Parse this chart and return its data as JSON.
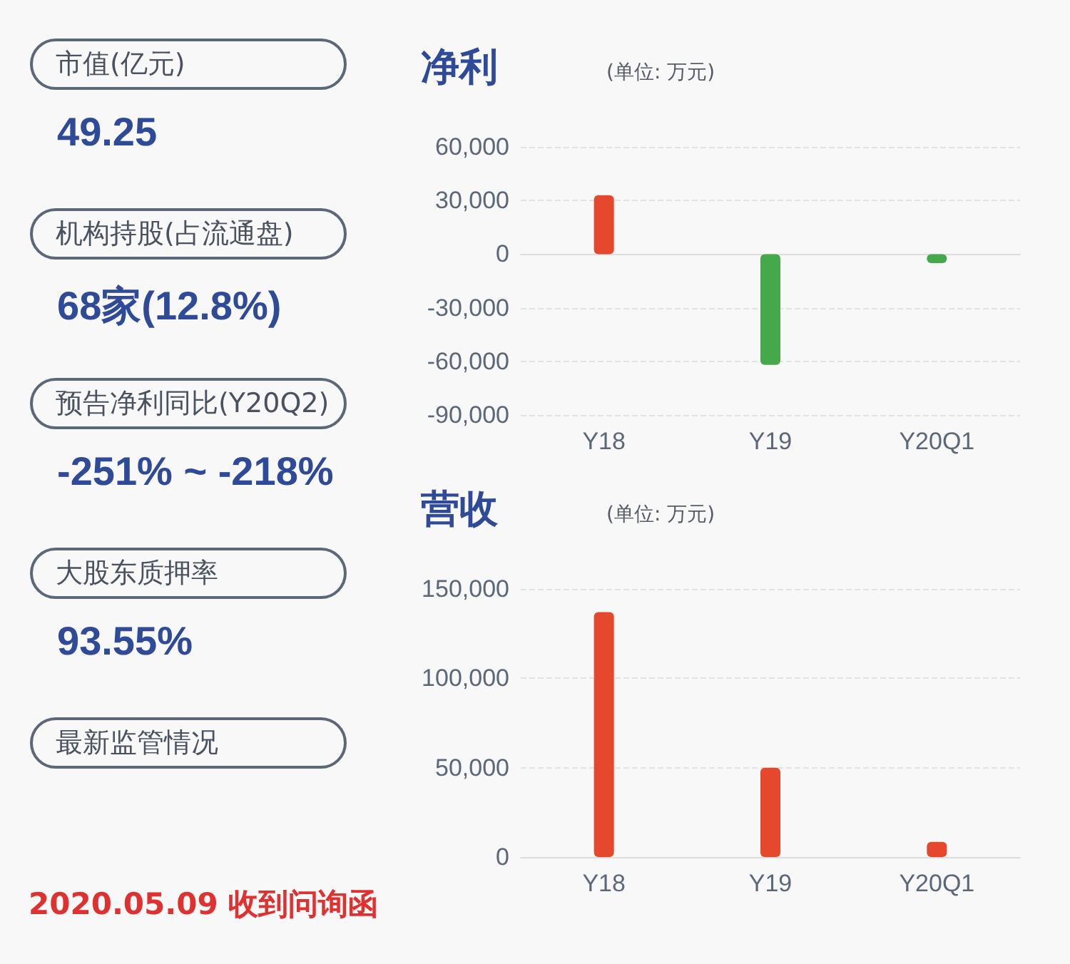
{
  "chart_data": [
    {
      "type": "other",
      "annotations": [
        "市值(亿元)",
        "49.25",
        "机构持股(占流通盘)",
        "68家(12.8%)",
        "预告净利同比(Y20Q2)",
        "-251% ~ -218%",
        "大股东质押率",
        "93.55%",
        "最新监管情况",
        "2020.05.09 收到问询函"
      ]
    },
    {
      "type": "bar",
      "title": "净利",
      "subtitle": "(单位: 万元)",
      "categories": [
        "Y18",
        "Y19",
        "Y20Q1"
      ],
      "values": [
        33000,
        -62000,
        -5000
      ],
      "colors": [
        "#e5482c",
        "#45a84a",
        "#45a84a"
      ],
      "ylim": [
        -90000,
        60000
      ],
      "yticks": [
        {
          "value": -90000,
          "label": "-90,000"
        },
        {
          "value": -60000,
          "label": "-60,000"
        },
        {
          "value": -30000,
          "label": "-30,000"
        },
        0,
        {
          "value": 30000,
          "label": "30,000"
        },
        {
          "value": 60000,
          "label": "60,000"
        }
      ],
      "grid": "y"
    },
    {
      "type": "bar",
      "title": "营收",
      "subtitle": "(单位: 万元)",
      "categories": [
        "Y18",
        "Y19",
        "Y20Q1"
      ],
      "values": [
        137000,
        50000,
        8500
      ],
      "colors": [
        "#e5482c",
        "#e5482c",
        "#e5482c"
      ],
      "ylim": [
        0,
        150000
      ],
      "yticks": [
        0,
        {
          "value": 50000,
          "label": "50,000"
        },
        {
          "value": 100000,
          "label": "100,000"
        },
        {
          "value": 150000,
          "label": "150,000"
        }
      ],
      "grid": "y"
    }
  ]
}
